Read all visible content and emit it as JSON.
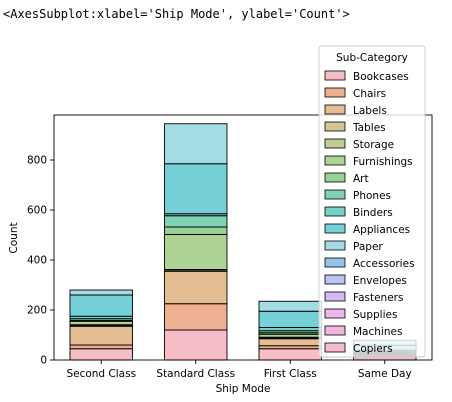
{
  "output_repr": "<AxesSubplot:xlabel='Ship Mode', ylabel='Count'>",
  "chart_data": {
    "type": "bar",
    "stacked": true,
    "title": "",
    "xlabel": "Ship Mode",
    "ylabel": "Count",
    "categories": [
      "Second Class",
      "Standard Class",
      "First Class",
      "Same Day"
    ],
    "ylim": [
      0,
      980
    ],
    "yticks": [
      0,
      200,
      400,
      600,
      800
    ],
    "grid": false,
    "legend": {
      "title": "Sub-Category",
      "placement": "top-right"
    },
    "series": [
      {
        "name": "Bookcases",
        "color": "#f2a3b0",
        "values": [
          45,
          120,
          45,
          15
        ]
      },
      {
        "name": "Chairs",
        "color": "#e8906a",
        "values": [
          15,
          105,
          12,
          2
        ]
      },
      {
        "name": "Labels",
        "color": "#d9a36a",
        "values": [
          75,
          130,
          28,
          4
        ]
      },
      {
        "name": "Tables",
        "color": "#c4b06a",
        "values": [
          4,
          5,
          4,
          2
        ]
      },
      {
        "name": "Storage",
        "color": "#aab96a",
        "values": [
          2,
          2,
          2,
          2
        ]
      },
      {
        "name": "Furnishings",
        "color": "#8ec06a",
        "values": [
          14,
          140,
          12,
          2
        ]
      },
      {
        "name": "Art",
        "color": "#6cc16e",
        "values": [
          3,
          30,
          6,
          3
        ]
      },
      {
        "name": "Phones",
        "color": "#4fc294",
        "values": [
          7,
          45,
          8,
          5
        ]
      },
      {
        "name": "Binders",
        "color": "#3fbfb0",
        "values": [
          10,
          8,
          13,
          4
        ]
      },
      {
        "name": "Appliances",
        "color": "#3ebcc8",
        "values": [
          85,
          200,
          65,
          20
        ]
      },
      {
        "name": "Paper",
        "color": "#7fd0d8",
        "values": [
          20,
          160,
          40,
          20
        ]
      },
      {
        "name": "Accessories",
        "color": "#6aaee6",
        "values": [
          0,
          0,
          0,
          0
        ]
      },
      {
        "name": "Envelopes",
        "color": "#a3aaf0",
        "values": [
          0,
          0,
          0,
          0
        ]
      },
      {
        "name": "Fasteners",
        "color": "#c6a0f0",
        "values": [
          0,
          0,
          0,
          0
        ]
      },
      {
        "name": "Supplies",
        "color": "#e69ae6",
        "values": [
          0,
          0,
          0,
          0
        ]
      },
      {
        "name": "Machines",
        "color": "#f09ad2",
        "values": [
          0,
          0,
          0,
          0
        ]
      },
      {
        "name": "Copiers",
        "color": "#f29fbf",
        "values": [
          0,
          0,
          0,
          0
        ]
      }
    ]
  }
}
